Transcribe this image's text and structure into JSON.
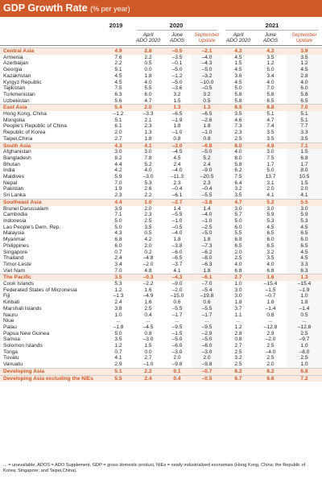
{
  "title": "GDP Growth Rate",
  "subtitle": "(% per year)",
  "years": [
    "2019",
    "2020",
    "2021"
  ],
  "subheads": {
    "apr": [
      "April",
      "ADO 2020"
    ],
    "jun": [
      "June",
      "ADOS"
    ],
    "sep": [
      "September",
      "Update"
    ]
  },
  "colors": {
    "accent": "#d0592a",
    "band": "#fbeadf"
  },
  "rows": [
    {
      "type": "group",
      "label": "Central Asia",
      "v": [
        "4.9",
        "2.8",
        "–0.5",
        "–2.1",
        "4.2",
        "4.2",
        "3.9"
      ]
    },
    {
      "type": "row",
      "label": "Armenia",
      "v": [
        "7.6",
        "2.2",
        "–3.5",
        "–4.0",
        "4.5",
        "3.5",
        "3.5"
      ]
    },
    {
      "type": "row",
      "label": "Azerbaijan",
      "v": [
        "2.2",
        "0.5",
        "–0.1",
        "–4.3",
        "1.5",
        "1.2",
        "1.2"
      ]
    },
    {
      "type": "row",
      "label": "Georgia",
      "v": [
        "5.1",
        "0.0",
        "–5.0",
        "–5.0",
        "4.5",
        "5.0",
        "4.5"
      ]
    },
    {
      "type": "row",
      "label": "Kazakhstan",
      "v": [
        "4.5",
        "1.8",
        "–1.2",
        "–3.2",
        "3.6",
        "3.4",
        "2.8"
      ]
    },
    {
      "type": "row",
      "label": "Kyrgyz Republic",
      "v": [
        "4.5",
        "4.0",
        "–5.0",
        "–10.0",
        "4.5",
        "4.0",
        "4.0"
      ]
    },
    {
      "type": "row",
      "label": "Tajikistan",
      "v": [
        "7.5",
        "5.5",
        "–3.6",
        "–0.5",
        "5.0",
        "7.0",
        "6.0"
      ]
    },
    {
      "type": "row",
      "label": "Turkmenistan",
      "v": [
        "6.3",
        "6.0",
        "3.2",
        "3.2",
        "5.8",
        "5.8",
        "5.8"
      ]
    },
    {
      "type": "row",
      "label": "Uzbekistan",
      "v": [
        "5.6",
        "4.7",
        "1.5",
        "0.5",
        "5.8",
        "6.5",
        "6.5"
      ]
    },
    {
      "type": "group",
      "label": "East Asia",
      "v": [
        "5.4",
        "2.0",
        "1.3",
        "1.3",
        "6.5",
        "6.8",
        "7.0"
      ]
    },
    {
      "type": "row",
      "label": "Hong Kong, China",
      "v": [
        "–1.2",
        "–3.3",
        "–6.5",
        "–6.5",
        "3.5",
        "5.1",
        "5.1"
      ]
    },
    {
      "type": "row",
      "label": "Mongolia",
      "v": [
        "5.1",
        "2.1",
        "–1.9",
        "–2.6",
        "4.6",
        "4.7",
        "5.1"
      ]
    },
    {
      "type": "row",
      "label": "People's Republic of China",
      "v": [
        "6.1",
        "2.3",
        "1.8",
        "1.8",
        "7.3",
        "7.4",
        "7.7"
      ]
    },
    {
      "type": "row",
      "label": "Republic of Korea",
      "v": [
        "2.0",
        "1.3",
        "–1.0",
        "–1.0",
        "2.3",
        "3.5",
        "3.3"
      ]
    },
    {
      "type": "row",
      "label": "Taipei,China",
      "v": [
        "2.7",
        "1.8",
        "0.8",
        "0.8",
        "2.5",
        "3.5",
        "3.5"
      ]
    },
    {
      "type": "group",
      "label": "South Asia",
      "v": [
        "4.3",
        "4.1",
        "–3.0",
        "–6.8",
        "6.0",
        "4.9",
        "7.1"
      ]
    },
    {
      "type": "row",
      "label": "Afghanistan",
      "v": [
        "3.0",
        "3.0",
        "–4.5",
        "–5.0",
        "4.0",
        "3.0",
        "1.5"
      ]
    },
    {
      "type": "row",
      "label": "Bangladesh",
      "v": [
        "8.2",
        "7.8",
        "4.5",
        "5.2",
        "8.0",
        "7.5",
        "6.8"
      ]
    },
    {
      "type": "row",
      "label": "Bhutan",
      "v": [
        "4.4",
        "5.2",
        "2.4",
        "2.4",
        "5.8",
        "1.7",
        "1.7"
      ]
    },
    {
      "type": "row",
      "label": "India",
      "v": [
        "4.2",
        "4.0",
        "–4.0",
        "–9.0",
        "6.2",
        "5.0",
        "8.0"
      ]
    },
    {
      "type": "row",
      "label": "Maldives",
      "v": [
        "5.9",
        "–3.0",
        "–11.3",
        "–20.5",
        "7.5",
        "13.7",
        "10.5"
      ]
    },
    {
      "type": "row",
      "label": "Nepal",
      "v": [
        "7.0",
        "5.3",
        "2.3",
        "2.3",
        "6.4",
        "3.1",
        "1.5"
      ]
    },
    {
      "type": "row",
      "label": "Pakistan",
      "v": [
        "1.9",
        "2.6",
        "–0.4",
        "–0.4",
        "3.2",
        "2.0",
        "2.0"
      ]
    },
    {
      "type": "row",
      "label": "Sri Lanka",
      "v": [
        "2.3",
        "2.2",
        "–6.1",
        "–5.5",
        "3.5",
        "4.1",
        "4.1"
      ]
    },
    {
      "type": "group",
      "label": "Southeast Asia",
      "v": [
        "4.4",
        "1.0",
        "–2.7",
        "–3.8",
        "4.7",
        "5.2",
        "5.5"
      ]
    },
    {
      "type": "row",
      "label": "Brunei Darussalam",
      "v": [
        "3.9",
        "2.0",
        "1.4",
        "1.4",
        "3.0",
        "3.0",
        "3.0"
      ]
    },
    {
      "type": "row",
      "label": "Cambodia",
      "v": [
        "7.1",
        "2.3",
        "–5.5",
        "–4.0",
        "5.7",
        "5.9",
        "5.9"
      ]
    },
    {
      "type": "row",
      "label": "Indonesia",
      "v": [
        "5.0",
        "2.5",
        "–1.0",
        "–1.0",
        "5.0",
        "5.3",
        "5.3"
      ]
    },
    {
      "type": "row",
      "label": "Lao People's Dem. Rep.",
      "v": [
        "5.0",
        "3.5",
        "–0.5",
        "–2.5",
        "6.0",
        "4.5",
        "4.5"
      ]
    },
    {
      "type": "row",
      "label": "Malaysia",
      "v": [
        "4.3",
        "0.5",
        "–4.0",
        "–5.0",
        "5.5",
        "6.5",
        "6.5"
      ]
    },
    {
      "type": "row",
      "label": "Myanmar",
      "v": [
        "6.8",
        "4.2",
        "1.8",
        "1.8",
        "6.8",
        "6.0",
        "6.0"
      ]
    },
    {
      "type": "row",
      "label": "Philippines",
      "v": [
        "6.0",
        "2.0",
        "–3.8",
        "–7.3",
        "6.5",
        "6.5",
        "6.5"
      ]
    },
    {
      "type": "row",
      "label": "Singapore",
      "v": [
        "0.7",
        "0.2",
        "–6.0",
        "–6.2",
        "2.0",
        "3.2",
        "4.5"
      ]
    },
    {
      "type": "row",
      "label": "Thailand",
      "v": [
        "2.4",
        "–4.8",
        "–6.5",
        "–8.0",
        "2.5",
        "3.5",
        "4.5"
      ]
    },
    {
      "type": "row",
      "label": "Timor-Leste",
      "v": [
        "3.4",
        "–2.0",
        "–3.7",
        "–6.3",
        "4.0",
        "4.0",
        "3.3"
      ]
    },
    {
      "type": "row",
      "label": "Viet Nam",
      "v": [
        "7.0",
        "4.8",
        "4.1",
        "1.8",
        "6.8",
        "6.8",
        "6.3"
      ]
    },
    {
      "type": "group",
      "label": "The Pacific",
      "v": [
        "3.5",
        "–0.3",
        "–4.3",
        "–6.1",
        "2.7",
        "1.6",
        "1.3"
      ]
    },
    {
      "type": "row",
      "label": "Cook Islands",
      "v": [
        "5.3",
        "–2.2",
        "–9.0",
        "–7.0",
        "1.0",
        "–15.4",
        "–15.4"
      ]
    },
    {
      "type": "row",
      "label": "Federated States of Micronesia",
      "v": [
        "1.2",
        "1.6",
        "–2.0",
        "–5.4",
        "3.0",
        "–1.5",
        "–1.9"
      ]
    },
    {
      "type": "row",
      "label": "Fiji",
      "v": [
        "–1.3",
        "–4.9",
        "–15.0",
        "–19.8",
        "3.0",
        "–0.7",
        "1.0"
      ]
    },
    {
      "type": "row",
      "label": "Kiribati",
      "v": [
        "2.4",
        "1.6",
        "0.6",
        "0.6",
        "1.8",
        "1.8",
        "1.8"
      ]
    },
    {
      "type": "row",
      "label": "Marshall Islands",
      "v": [
        "3.8",
        "2.5",
        "–5.5",
        "–5.5",
        "3.7",
        "–1.4",
        "–1.4"
      ]
    },
    {
      "type": "row",
      "label": "Nauru",
      "v": [
        "1.0",
        "0.4",
        "–1.7",
        "–1.7",
        "1.1",
        "0.8",
        "0.5"
      ]
    },
    {
      "type": "row",
      "label": "Niue",
      "v": [
        "...",
        "...",
        "...",
        "...",
        "...",
        "...",
        "..."
      ]
    },
    {
      "type": "row",
      "label": "Palau",
      "v": [
        "–1.8",
        "–4.5",
        "–9.5",
        "–9.5",
        "1.2",
        "–12.8",
        "–12.8"
      ]
    },
    {
      "type": "row",
      "label": "Papua New Guinea",
      "v": [
        "5.0",
        "0.8",
        "–1.5",
        "–2.9",
        "2.8",
        "2.9",
        "2.5"
      ]
    },
    {
      "type": "row",
      "label": "Samoa",
      "v": [
        "3.5",
        "–3.0",
        "–5.0",
        "–5.0",
        "0.8",
        "–2.0",
        "–9.7"
      ]
    },
    {
      "type": "row",
      "label": "Solomon Islands",
      "v": [
        "1.2",
        "1.5",
        "–6.0",
        "–6.0",
        "2.7",
        "2.5",
        "1.0"
      ]
    },
    {
      "type": "row",
      "label": "Tonga",
      "v": [
        "0.7",
        "0.0",
        "–3.0",
        "–3.0",
        "2.5",
        "–4.0",
        "–8.0"
      ]
    },
    {
      "type": "row",
      "label": "Tuvalu",
      "v": [
        "4.1",
        "2.7",
        "2.0",
        "2.0",
        "3.2",
        "2.5",
        "2.5"
      ]
    },
    {
      "type": "row",
      "label": "Vanuatu",
      "v": [
        "2.9",
        "–1.0",
        "–9.8",
        "–9.8",
        "2.5",
        "2.0",
        "1.0"
      ]
    },
    {
      "type": "agg",
      "label": "Developing Asia",
      "v": [
        "5.1",
        "2.2",
        "0.1",
        "–0.7",
        "6.2",
        "6.2",
        "6.8"
      ]
    },
    {
      "type": "agg",
      "label": "Developing Asia excluding the NIEs",
      "v": [
        "5.5",
        "2.4",
        "0.4",
        "–0.5",
        "6.7",
        "6.6",
        "7.2"
      ]
    }
  ],
  "footnote": "... = unavailable, ADOS = ADO Supplement, GDP = gross domestic product, NIEs = newly industrialized economies (Hong Kong, China; the Republic of Korea; Singapore; and Taipei,China)."
}
